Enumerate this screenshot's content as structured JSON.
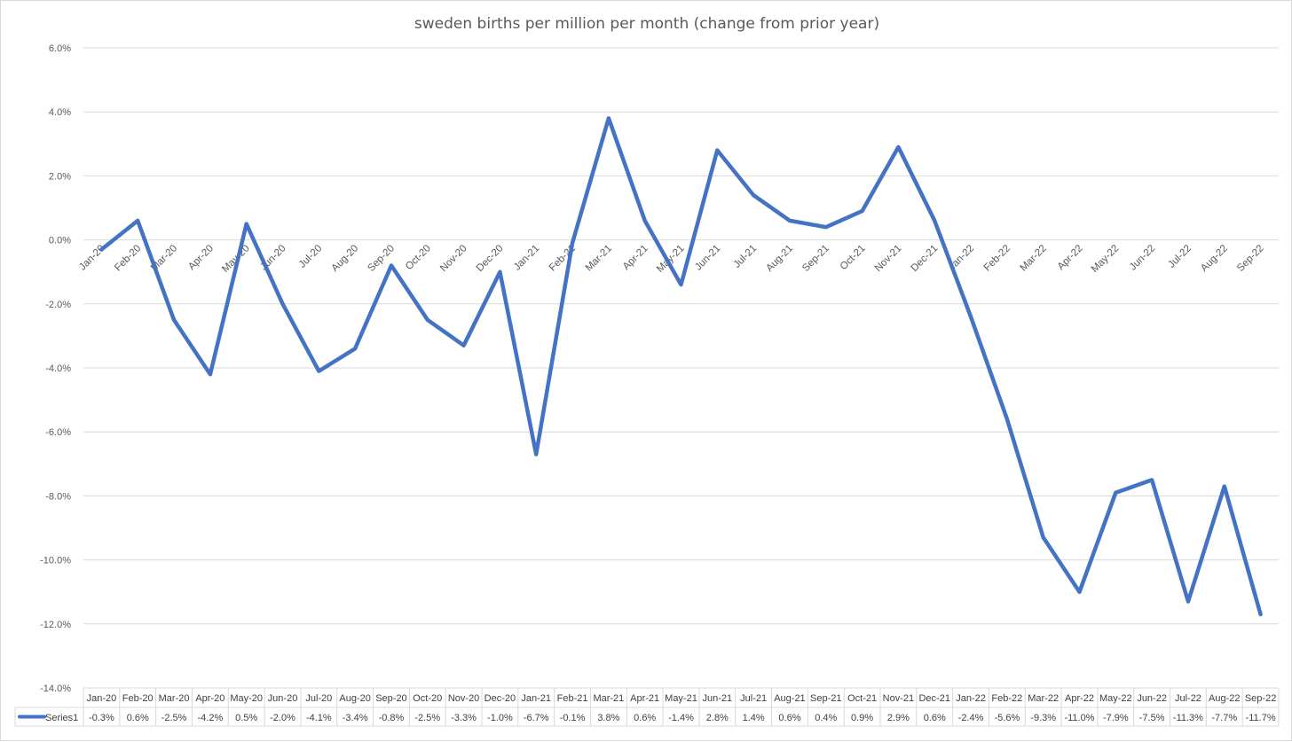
{
  "chart_data": {
    "type": "line",
    "title": "sweden births per million per month (change from prior year)",
    "xlabel": "",
    "ylabel": "",
    "ylim": [
      -14.0,
      6.0
    ],
    "yticks": [
      "6.0%",
      "4.0%",
      "2.0%",
      "0.0%",
      "-2.0%",
      "-4.0%",
      "-6.0%",
      "-8.0%",
      "-10.0%",
      "-12.0%",
      "-14.0%"
    ],
    "ytick_values": [
      6,
      4,
      2,
      0,
      -2,
      -4,
      -6,
      -8,
      -10,
      -12,
      -14
    ],
    "grid": true,
    "legend": "data-table-bottom",
    "data_table": true,
    "line_color": "#4472c4",
    "categories": [
      "Jan-20",
      "Feb-20",
      "Mar-20",
      "Apr-20",
      "May-20",
      "Jun-20",
      "Jul-20",
      "Aug-20",
      "Sep-20",
      "Oct-20",
      "Nov-20",
      "Dec-20",
      "Jan-21",
      "Feb-21",
      "Mar-21",
      "Apr-21",
      "May-21",
      "Jun-21",
      "Jul-21",
      "Aug-21",
      "Sep-21",
      "Oct-21",
      "Nov-21",
      "Dec-21",
      "Jan-22",
      "Feb-22",
      "Mar-22",
      "Apr-22",
      "May-22",
      "Jun-22",
      "Jul-22",
      "Aug-22",
      "Sep-22"
    ],
    "series": [
      {
        "name": "Series1",
        "values": [
          -0.3,
          0.6,
          -2.5,
          -4.2,
          0.5,
          -2.0,
          -4.1,
          -3.4,
          -0.8,
          -2.5,
          -3.3,
          -1.0,
          -6.7,
          -0.1,
          3.8,
          0.6,
          -1.4,
          2.8,
          1.4,
          0.6,
          0.4,
          0.9,
          2.9,
          0.6,
          -2.4,
          -5.6,
          -9.3,
          -11.0,
          -7.9,
          -7.5,
          -11.3,
          -7.7,
          -11.7
        ],
        "labels": [
          "-0.3%",
          "0.6%",
          "-2.5%",
          "-4.2%",
          "0.5%",
          "-2.0%",
          "-4.1%",
          "-3.4%",
          "-0.8%",
          "-2.5%",
          "-3.3%",
          "-1.0%",
          "-6.7%",
          "-0.1%",
          "3.8%",
          "0.6%",
          "-1.4%",
          "2.8%",
          "1.4%",
          "0.6%",
          "0.4%",
          "0.9%",
          "2.9%",
          "0.6%",
          "-2.4%",
          "-5.6%",
          "-9.3%",
          "-11.0%",
          "-7.9%",
          "-7.5%",
          "-11.3%",
          "-7.7%",
          "-11.7%"
        ]
      }
    ]
  }
}
